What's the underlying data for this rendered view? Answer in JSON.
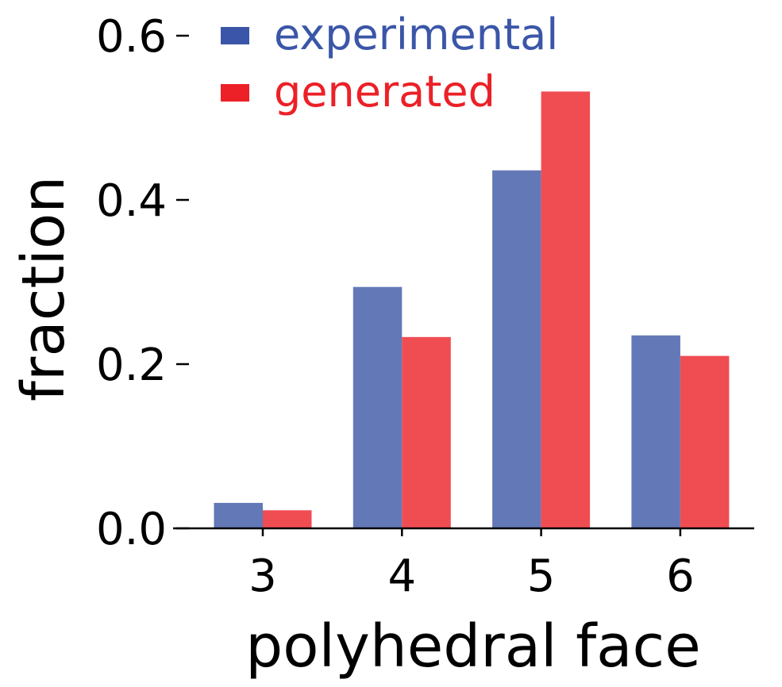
{
  "chart_data": {
    "type": "bar",
    "categories": [
      "3",
      "4",
      "5",
      "6"
    ],
    "series": [
      {
        "name": "experimental",
        "values": [
          0.031,
          0.294,
          0.436,
          0.235
        ],
        "color": "#6378b7"
      },
      {
        "name": "generated",
        "values": [
          0.022,
          0.233,
          0.532,
          0.21
        ],
        "color": "#f04d53"
      }
    ],
    "legend_colors": [
      "#3b56a8",
      "#ec2027"
    ],
    "xlabel": "polyhedral face",
    "ylabel": "fraction",
    "ylim": [
      0,
      0.6
    ],
    "yticks": [
      "0.0",
      "0.2",
      "0.4",
      "0.6"
    ],
    "ytick_values": [
      0,
      0.2,
      0.4,
      0.6
    ],
    "legend_placement": "top-left",
    "grid": false
  }
}
